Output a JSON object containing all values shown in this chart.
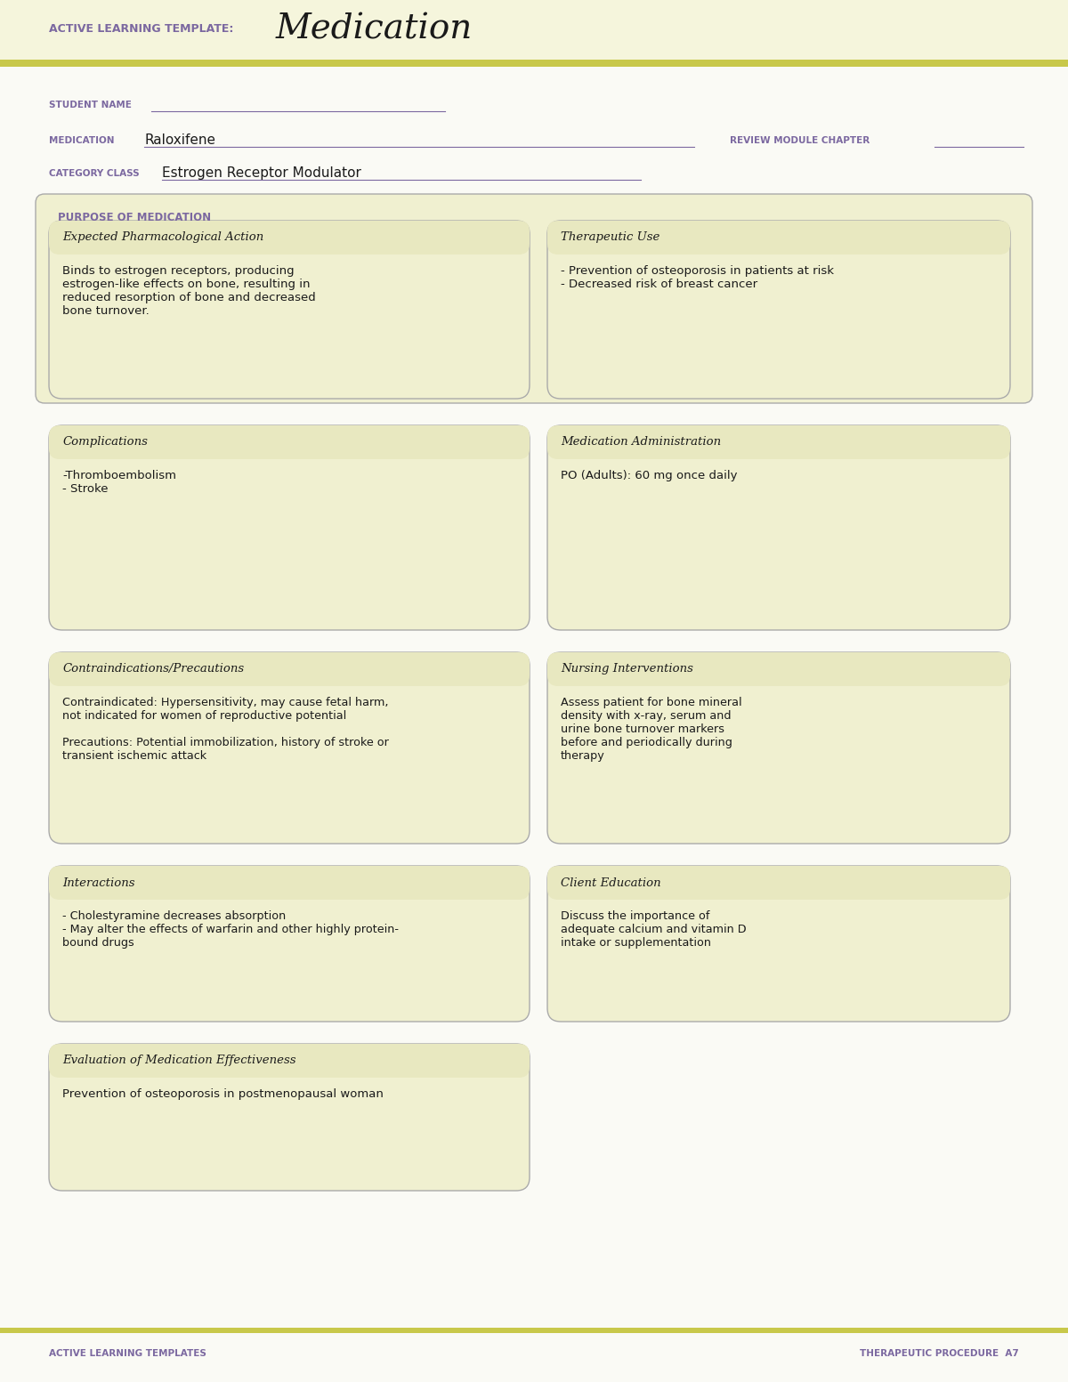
{
  "bg_color": "#f5f5dc",
  "white": "#ffffff",
  "olive_green": "#c8c84a",
  "light_yellow": "#f0f0d0",
  "box_border": "#aaaaaa",
  "header_bg": "#e8e8c0",
  "purple_text": "#7b68a0",
  "dark_text": "#1a1a1a",
  "title_label": "ACTIVE LEARNING TEMPLATE:",
  "title_main": "Medication",
  "student_name_label": "STUDENT NAME",
  "medication_label": "MEDICATION",
  "medication_value": "Raloxifene",
  "review_label": "REVIEW MODULE CHAPTER",
  "category_label": "CATEGORY CLASS",
  "category_value": "Estrogen Receptor Modulator",
  "purpose_header": "PURPOSE OF MEDICATION",
  "box1_title": "Expected Pharmacological Action",
  "box1_content": "Binds to estrogen receptors, producing\nestrogen-like effects on bone, resulting in\nreduced resorption of bone and decreased\nbone turnover.",
  "box2_title": "Therapeutic Use",
  "box2_content": "- Prevention of osteoporosis in patients at risk\n- Decreased risk of breast cancer",
  "box3_title": "Complications",
  "box3_content": "-Thromboembolism\n- Stroke",
  "box4_title": "Medication Administration",
  "box4_content": "PO (Adults): 60 mg once daily",
  "box5_title": "Contraindications/Precautions",
  "box5_content": "Contraindicated: Hypersensitivity, may cause fetal harm,\nnot indicated for women of reproductive potential\n\nPrecautions: Potential immobilization, history of stroke or\ntransient ischemic attack",
  "box6_title": "Nursing Interventions",
  "box6_content": "Assess patient for bone mineral\ndensity with x-ray, serum and\nurine bone turnover markers\nbefore and periodically during\ntherapy",
  "box7_title": "Interactions",
  "box7_content": "- Cholestyramine decreases absorption\n- May alter the effects of warfarin and other highly protein-\nbound drugs",
  "box8_title": "Client Education",
  "box8_content": "Discuss the importance of\nadequate calcium and vitamin D\nintake or supplementation",
  "box9_title": "Evaluation of Medication Effectiveness",
  "box9_content": "Prevention of osteoporosis in postmenopausal woman",
  "footer_left": "ACTIVE LEARNING TEMPLATES",
  "footer_right": "THERAPEUTIC PROCEDURE  A7"
}
